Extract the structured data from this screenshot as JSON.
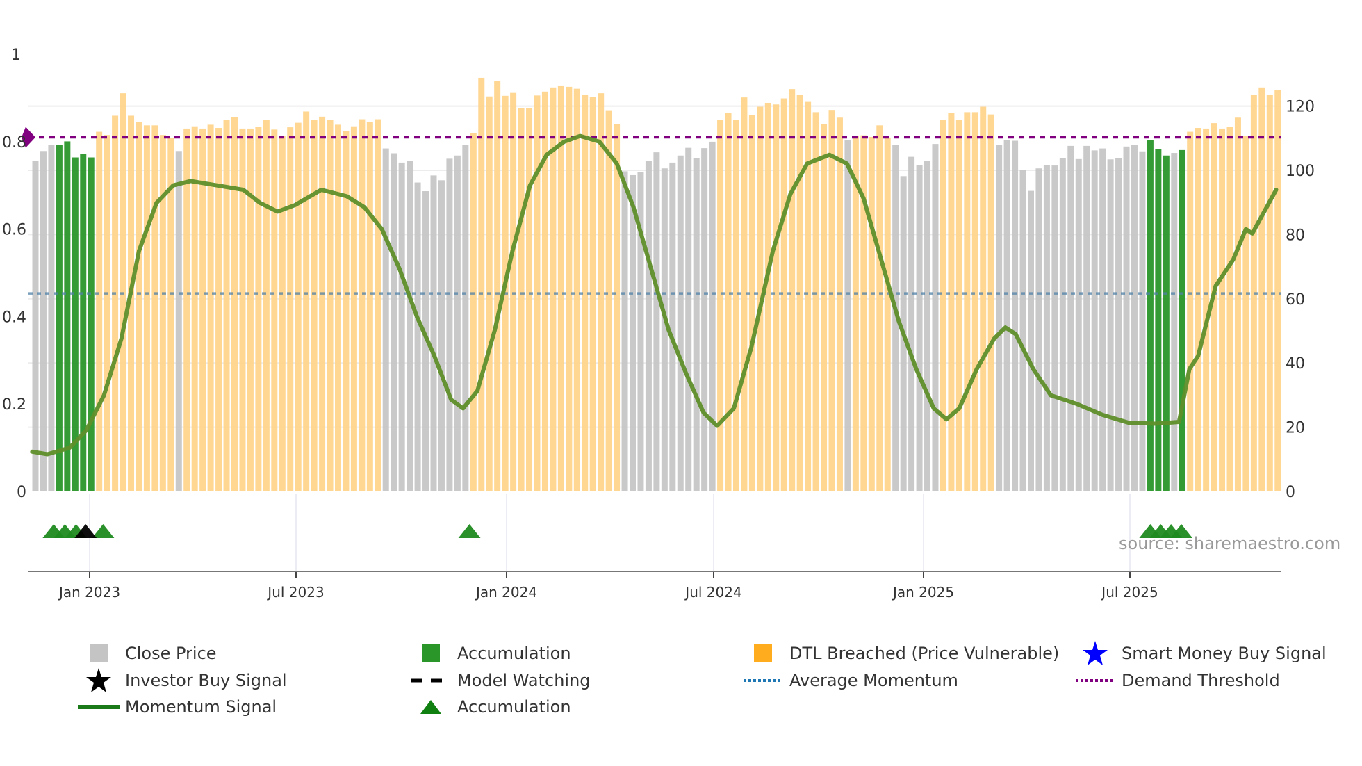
{
  "chart_data": {
    "type": "bar",
    "x_ticks": [
      "Jan 2023",
      "Jul 2023",
      "Jan 2024",
      "Jul 2024",
      "Jan 2025",
      "Jul 2025"
    ],
    "left_axis": {
      "ticks": [
        "0",
        "0.2",
        "0.4",
        "0.6",
        "0.8",
        "1"
      ],
      "ylim": [
        0,
        1
      ]
    },
    "right_axis": {
      "ticks": [
        "0",
        "20",
        "40",
        "60",
        "80",
        "100",
        "120"
      ],
      "ylim": [
        0,
        136
      ]
    },
    "bar_segments": [
      {
        "type": "close",
        "values": [
          103,
          106,
          108
        ]
      },
      {
        "type": "accumulation",
        "values": [
          108,
          109,
          104,
          105,
          104
        ]
      },
      {
        "type": "dtl",
        "values": [
          112,
          111,
          117,
          124,
          117,
          115,
          114,
          114,
          111,
          110
        ]
      },
      {
        "type": "close",
        "values": [
          106
        ]
      },
      {
        "type": "dtl",
        "values": [
          113,
          113.7,
          113,
          114.2,
          113.2,
          115.8,
          116.5,
          113,
          113,
          113.6,
          115.8,
          112.7,
          110.6,
          113.4,
          114.8,
          118.3,
          115.6,
          116.7,
          115.6,
          114.2,
          112.3,
          113.7,
          115.9,
          115.1,
          115.9
        ]
      },
      {
        "type": "close",
        "values": [
          106.8,
          105.3,
          102.4,
          102.9,
          96.2,
          93.5,
          98.4,
          96.9,
          103.6,
          104.6,
          107.9
        ]
      },
      {
        "type": "dtl",
        "values": [
          111.6,
          128.8,
          123,
          127.9,
          123.2,
          124.1,
          119.3,
          119.3,
          123.3,
          124.5,
          125.8,
          126.2,
          126,
          125.4,
          123.6,
          122.8,
          124,
          118.7,
          114.5
        ]
      },
      {
        "type": "close",
        "values": [
          99.7,
          98.5,
          99.5,
          102.9,
          105.6,
          100.6,
          102.4,
          104.6,
          107,
          103.8,
          106.9,
          108.9
        ]
      },
      {
        "type": "dtl",
        "values": [
          115.7,
          117.8,
          115.7,
          122.7,
          117.3,
          119.8,
          121,
          120.5,
          122.4,
          125.3,
          123.4,
          121.3,
          118.1,
          114.5,
          118.8,
          116.4
        ]
      },
      {
        "type": "close",
        "values": [
          109.3
        ]
      },
      {
        "type": "dtl",
        "values": [
          110.6,
          110.9,
          110.4,
          114,
          110.2
        ]
      },
      {
        "type": "close",
        "values": [
          108,
          98.2,
          104.2,
          101.6,
          102.9,
          108.2
        ]
      },
      {
        "type": "dtl",
        "values": [
          115.7,
          117.8,
          115.7,
          118.1,
          118.1,
          119.8,
          117.4
        ]
      },
      {
        "type": "close",
        "values": [
          108,
          109.5,
          109.2,
          100,
          93.6,
          100.6,
          101.7,
          101.5,
          103.8,
          107.6,
          103.5,
          107.6,
          106.2,
          106.8,
          103.4,
          103.8,
          107.4,
          108,
          105.9
        ]
      },
      {
        "type": "accumulation",
        "values": [
          109.4,
          106.5,
          104.6
        ]
      },
      {
        "type": "close",
        "values": [
          105.4
        ]
      },
      {
        "type": "accumulation",
        "values": [
          106.3
        ]
      },
      {
        "type": "dtl",
        "values": [
          112,
          113.2,
          113,
          114.7,
          113,
          113.6,
          116.4,
          110.6,
          123.4,
          125.8,
          123.4,
          125
        ]
      }
    ],
    "momentum": [
      [
        -0.4,
        0.091
      ],
      [
        1.5,
        0.085
      ],
      [
        4.3,
        0.1
      ],
      [
        6.4,
        0.14
      ],
      [
        8.6,
        0.22
      ],
      [
        10.8,
        0.35
      ],
      [
        13,
        0.55
      ],
      [
        15.2,
        0.66
      ],
      [
        17.3,
        0.7
      ],
      [
        19.5,
        0.71
      ],
      [
        22.8,
        0.7
      ],
      [
        26.1,
        0.69
      ],
      [
        28.2,
        0.66
      ],
      [
        30.4,
        0.64
      ],
      [
        32.6,
        0.655
      ],
      [
        35.9,
        0.69
      ],
      [
        39.1,
        0.675
      ],
      [
        41.3,
        0.65
      ],
      [
        43.5,
        0.6
      ],
      [
        45.7,
        0.51
      ],
      [
        47.9,
        0.4
      ],
      [
        50.1,
        0.31
      ],
      [
        52.2,
        0.21
      ],
      [
        53.7,
        0.19
      ],
      [
        55.5,
        0.23
      ],
      [
        57.7,
        0.37
      ],
      [
        59.9,
        0.55
      ],
      [
        62.1,
        0.7
      ],
      [
        64.2,
        0.77
      ],
      [
        66.4,
        0.8
      ],
      [
        68.4,
        0.813
      ],
      [
        70.8,
        0.8
      ],
      [
        73,
        0.75
      ],
      [
        75.1,
        0.65
      ],
      [
        77.3,
        0.51
      ],
      [
        79.5,
        0.37
      ],
      [
        81.7,
        0.27
      ],
      [
        83.9,
        0.18
      ],
      [
        85.6,
        0.15
      ],
      [
        87.7,
        0.19
      ],
      [
        89.9,
        0.33
      ],
      [
        92.6,
        0.55
      ],
      [
        94.8,
        0.68
      ],
      [
        96.9,
        0.75
      ],
      [
        99.7,
        0.77
      ],
      [
        101.9,
        0.75
      ],
      [
        104,
        0.67
      ],
      [
        106.2,
        0.53
      ],
      [
        108.4,
        0.39
      ],
      [
        110.6,
        0.28
      ],
      [
        112.8,
        0.19
      ],
      [
        114.4,
        0.165
      ],
      [
        116,
        0.19
      ],
      [
        118.2,
        0.28
      ],
      [
        120.4,
        0.35
      ],
      [
        121.8,
        0.375
      ],
      [
        123.1,
        0.36
      ],
      [
        125.3,
        0.28
      ],
      [
        127.5,
        0.22
      ],
      [
        130.8,
        0.2
      ],
      [
        134,
        0.175
      ],
      [
        137.3,
        0.157
      ],
      [
        140.6,
        0.155
      ],
      [
        143.6,
        0.159
      ],
      [
        144.9,
        0.28
      ],
      [
        146,
        0.31
      ],
      [
        148.2,
        0.47
      ],
      [
        150.4,
        0.53
      ],
      [
        152,
        0.6
      ],
      [
        152.8,
        0.59
      ],
      [
        155.8,
        0.69
      ]
    ],
    "demand_threshold": 0.81,
    "average_momentum": 0.453,
    "accumulation_markers": [
      2.3,
      3.7,
      5.1,
      8.5,
      54.5,
      140,
      141.3,
      142.6,
      143.9
    ],
    "investor_buy_markers": [
      6.3
    ],
    "source": "source: sharemaestro.com",
    "legend": [
      {
        "label": "Close Price",
        "icon": "gray-square"
      },
      {
        "label": "Accumulation",
        "icon": "green-square"
      },
      {
        "label": "DTL Breached (Price Vulnerable)",
        "icon": "orange-square"
      },
      {
        "label": "Smart Money Buy Signal",
        "icon": "blue-star"
      },
      {
        "label": "Investor Buy Signal",
        "icon": "black-star"
      },
      {
        "label": "Model Watching",
        "icon": "black-dashed-line"
      },
      {
        "label": "Average Momentum",
        "icon": "blue-dotted-line"
      },
      {
        "label": "Demand Threshold",
        "icon": "purple-dotted-line"
      },
      {
        "label": "Momentum Signal",
        "icon": "green-line"
      },
      {
        "label": "Accumulation",
        "icon": "green-triangle"
      }
    ],
    "colors": {
      "close": "#c4c4c4",
      "accumulation": "#2a962a",
      "dtl": "#ffd48a",
      "momentum": "#5f8f2a",
      "threshold": "#800080",
      "average": "#4f81a8",
      "marker": "#1f8a1f",
      "investor": "#000000",
      "smart_money": "#0000ff"
    }
  }
}
